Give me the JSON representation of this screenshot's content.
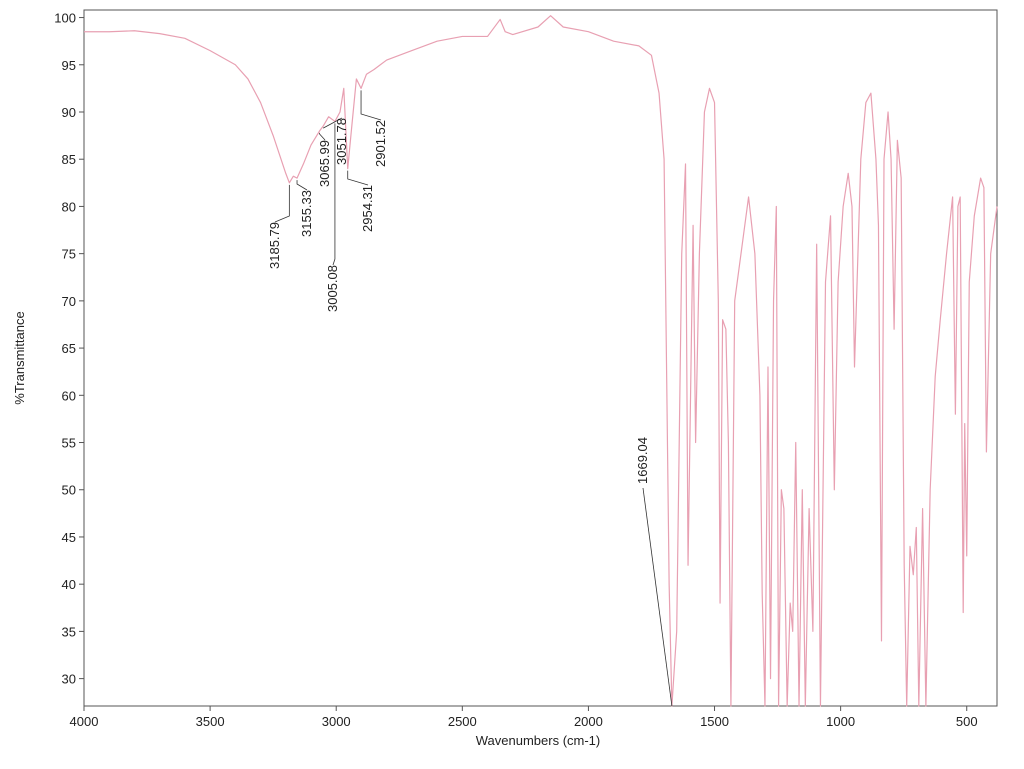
{
  "chart_data": {
    "type": "line",
    "xlabel": "Wavenumbers (cm-1)",
    "ylabel": "%Transmittance",
    "color": "#e8a0b2",
    "xlim": [
      4000,
      380
    ],
    "ylim": [
      27.1,
      100.8
    ],
    "xticks": [
      4000,
      3500,
      3000,
      2500,
      2000,
      1500,
      1000,
      500
    ],
    "yticks": [
      30,
      35,
      40,
      45,
      50,
      55,
      60,
      65,
      70,
      75,
      80,
      85,
      90,
      95,
      100
    ],
    "annotations": [
      3185.79,
      3155.33,
      3065.99,
      3051.78,
      3005.08,
      2954.31,
      2901.52,
      1669.04
    ],
    "x": [
      4000,
      3900,
      3800,
      3700,
      3600,
      3500,
      3400,
      3350,
      3300,
      3250,
      3200,
      3185.79,
      3170,
      3155.33,
      3130,
      3100,
      3065.99,
      3051.78,
      3030,
      3005.08,
      2985,
      2970,
      2954.31,
      2940,
      2920,
      2901.52,
      2880,
      2850,
      2800,
      2700,
      2600,
      2500,
      2400,
      2350,
      2330,
      2300,
      2200,
      2150,
      2100,
      2000,
      1950,
      1900,
      1800,
      1750,
      1720,
      1700,
      1680,
      1669.04,
      1650,
      1630,
      1615,
      1605,
      1595,
      1585,
      1575,
      1560,
      1540,
      1520,
      1500,
      1485,
      1478,
      1468,
      1455,
      1445,
      1435,
      1420,
      1400,
      1380,
      1365,
      1340,
      1320,
      1311,
      1300,
      1288,
      1278,
      1266,
      1255,
      1246,
      1235,
      1225,
      1212,
      1200,
      1190,
      1178,
      1165,
      1152,
      1140,
      1125,
      1110,
      1095,
      1080,
      1060,
      1040,
      1025,
      1010,
      990,
      970,
      955,
      945,
      920,
      900,
      880,
      860,
      850,
      838,
      828,
      812,
      800,
      788,
      775,
      760,
      748,
      738,
      725,
      712,
      700,
      690,
      675,
      662,
      645,
      625,
      605,
      580,
      556,
      545,
      535,
      526,
      514,
      508,
      500,
      490,
      470,
      445,
      432,
      422,
      405,
      380
    ],
    "values": [
      98.5,
      98.5,
      98.6,
      98.3,
      97.8,
      96.5,
      95,
      93.5,
      91,
      87.5,
      83.5,
      82.5,
      83.2,
      83,
      84.5,
      86.5,
      88,
      88.5,
      89.5,
      89,
      90,
      92.5,
      84,
      88,
      93.5,
      92.5,
      94,
      94.5,
      95.5,
      96.5,
      97.5,
      98,
      98,
      99.8,
      98.5,
      98.2,
      99,
      100.2,
      99,
      98.5,
      98,
      97.5,
      97,
      96,
      92,
      85,
      40,
      27.1,
      35,
      75,
      84.5,
      42,
      60,
      78,
      55,
      75,
      90,
      92.5,
      91,
      70,
      38,
      68,
      67,
      55,
      27.1,
      70,
      74,
      78,
      81,
      75,
      60,
      39,
      27.1,
      63,
      30,
      70,
      80,
      27.1,
      50,
      48,
      27.1,
      38,
      35,
      55,
      27.1,
      50,
      27.1,
      48,
      35,
      76,
      27.1,
      72,
      79,
      50,
      72,
      80,
      83.5,
      80,
      63,
      85,
      91,
      92,
      85,
      78,
      34,
      85,
      90,
      85,
      67,
      87,
      83,
      42,
      27.1,
      44,
      41,
      46,
      27.1,
      48,
      27.1,
      50,
      62,
      68,
      75,
      81,
      58,
      80,
      81,
      37,
      57,
      43,
      72,
      79,
      83,
      82,
      54,
      75,
      80
    ]
  }
}
